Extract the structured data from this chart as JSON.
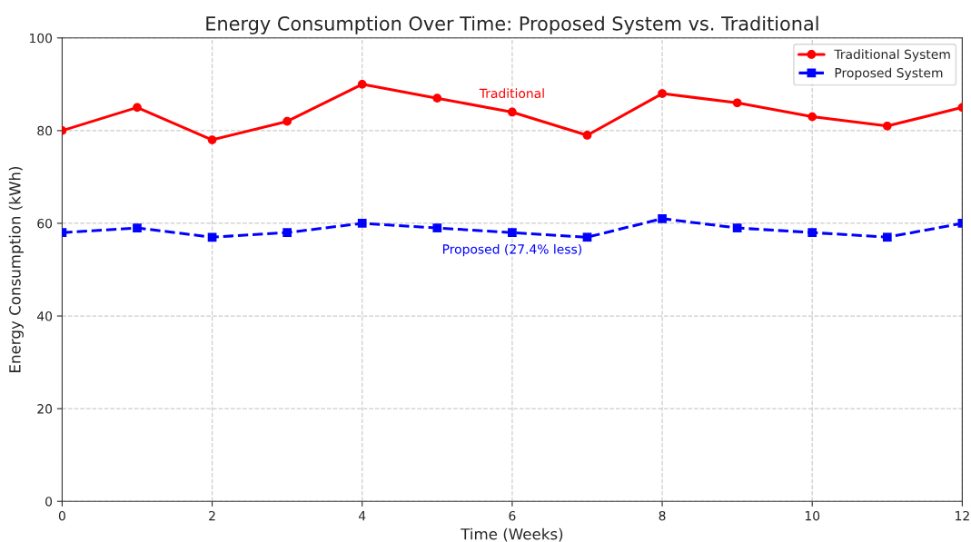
{
  "chart_data": {
    "type": "line",
    "title": "Energy Consumption Over Time: Proposed System vs. Traditional",
    "xlabel": "Time (Weeks)",
    "ylabel": "Energy Consumption (kWh)",
    "x": [
      0,
      1,
      2,
      3,
      4,
      5,
      6,
      7,
      8,
      9,
      10,
      11,
      12
    ],
    "series": [
      {
        "name": "Traditional System",
        "color": "#ff0000",
        "marker": "circle",
        "line_style": "solid",
        "values": [
          80,
          85,
          78,
          82,
          90,
          87,
          84,
          79,
          88,
          86,
          83,
          81,
          85
        ]
      },
      {
        "name": "Proposed System",
        "color": "#0000ff",
        "marker": "square",
        "line_style": "dashed",
        "values": [
          58,
          59,
          57,
          58,
          60,
          59,
          58,
          57,
          61,
          59,
          58,
          57,
          60
        ]
      }
    ],
    "annotations": [
      "Traditional",
      "Proposed (27.4% less)"
    ],
    "xlim": [
      0,
      12
    ],
    "xticks": [
      0,
      2,
      4,
      6,
      8,
      10,
      12
    ],
    "ylim": [
      0,
      100
    ],
    "yticks": [
      0,
      20,
      40,
      60,
      80,
      100
    ],
    "grid": true,
    "legend": "top right"
  }
}
